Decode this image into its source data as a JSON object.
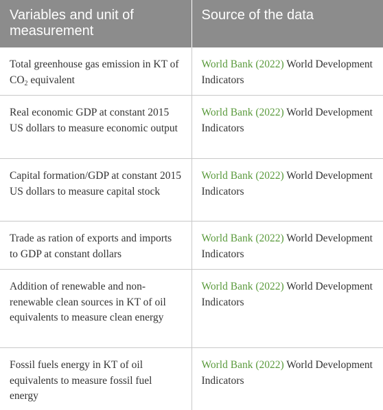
{
  "header": {
    "col1": "Variables and unit of measurement",
    "col2": "Source of the data"
  },
  "rows": [
    {
      "variable_pre": "Total greenhouse gas emission in KT of CO",
      "variable_sub": "2",
      "variable_post": " equivalent",
      "source_link": "World Bank (2022)",
      "source_text": " World Development Indicators"
    },
    {
      "variable": "Real economic GDP at constant 2015 US dollars to measure economic output",
      "source_link": "World Bank (2022)",
      "source_text": " World Development Indicators"
    },
    {
      "variable": "Capital formation/GDP at constant 2015 US dollars to measure capital stock",
      "source_link": "World Bank (2022)",
      "source_text": " World Development Indicators"
    },
    {
      "variable": "Trade as ration of exports and imports to GDP at constant dollars",
      "source_link": "World Bank (2022)",
      "source_text": " World Development Indicators"
    },
    {
      "variable": "Addition of renewable and non-renewable clean sources in KT of oil equivalents to measure clean energy",
      "source_link": "World Bank (2022)",
      "source_text": " World Development Indicators"
    },
    {
      "variable": "Fossil fuels energy in KT of oil equivalents to measure fossil fuel energy",
      "source_link": "World Bank (2022)",
      "source_text": " World Development Indicators"
    }
  ],
  "colors": {
    "header_bg": "#8c8c8c",
    "link": "#5a9a3c",
    "border": "#c8c8c8"
  }
}
